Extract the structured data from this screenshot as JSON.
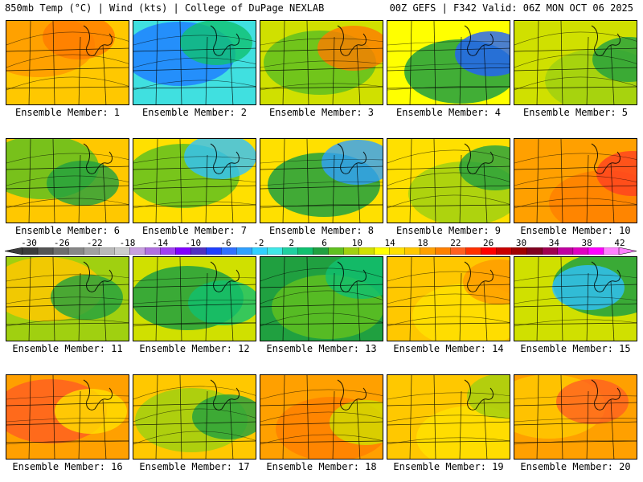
{
  "header": {
    "left": "850mb Temp (°C) | Wind (kts) | College of DuPage NEXLAB",
    "right": "00Z GEFS | F342 Valid: 06Z MON OCT 06 2025"
  },
  "colorbar": {
    "labels": [
      "-30",
      "-26",
      "-22",
      "-18",
      "-14",
      "-10",
      "-6",
      "-2",
      "2",
      "6",
      "10",
      "14",
      "18",
      "22",
      "26",
      "30",
      "34",
      "38",
      "42"
    ],
    "colors": [
      "#3c3c3c",
      "#555555",
      "#6e6e6e",
      "#878787",
      "#a0a0a0",
      "#b9b9b9",
      "#cccccc",
      "#c8a0e0",
      "#b070e0",
      "#a040f0",
      "#8000ff",
      "#5030c0",
      "#2040ff",
      "#3070ff",
      "#30a0ff",
      "#30d0ff",
      "#40e8e8",
      "#20d0a0",
      "#10c070",
      "#20a040",
      "#60c020",
      "#a0d010",
      "#d0e000",
      "#ffff00",
      "#ffe000",
      "#ffc800",
      "#ffa000",
      "#ff8000",
      "#ff6020",
      "#ff3000",
      "#ff0000",
      "#c80000",
      "#a00000",
      "#800020",
      "#a00050",
      "#c000a0",
      "#e000c0",
      "#ff00ff",
      "#ff80ff"
    ]
  },
  "panels": [
    {
      "label": "Ensemble Member: 1"
    },
    {
      "label": "Ensemble Member: 2"
    },
    {
      "label": "Ensemble Member: 3"
    },
    {
      "label": "Ensemble Member: 4"
    },
    {
      "label": "Ensemble Member: 5"
    },
    {
      "label": "Ensemble Member: 6"
    },
    {
      "label": "Ensemble Member: 7"
    },
    {
      "label": "Ensemble Member: 8"
    },
    {
      "label": "Ensemble Member: 9"
    },
    {
      "label": "Ensemble Member: 10"
    },
    {
      "label": "Ensemble Member: 11"
    },
    {
      "label": "Ensemble Member: 12"
    },
    {
      "label": "Ensemble Member: 13"
    },
    {
      "label": "Ensemble Member: 14"
    },
    {
      "label": "Ensemble Member: 15"
    },
    {
      "label": "Ensemble Member: 16"
    },
    {
      "label": "Ensemble Member: 17"
    },
    {
      "label": "Ensemble Member: 18"
    },
    {
      "label": "Ensemble Member: 19"
    },
    {
      "label": "Ensemble Member: 20"
    }
  ]
}
